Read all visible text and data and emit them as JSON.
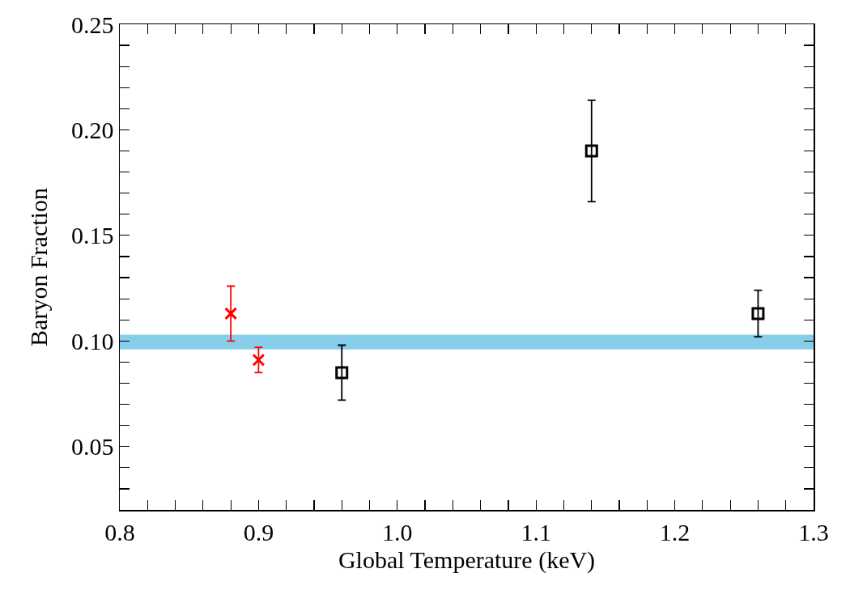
{
  "chart_data": {
    "type": "scatter",
    "xlabel": "Global Temperature (keV)",
    "ylabel": "Baryon Fraction",
    "xlim": [
      0.8,
      1.3
    ],
    "xticks": [
      {
        "value": 0.8,
        "label": "0.8"
      },
      {
        "value": 0.82,
        "label": null
      },
      {
        "value": 0.84,
        "label": null
      },
      {
        "value": 0.86,
        "label": null
      },
      {
        "value": 0.88,
        "label": null
      },
      {
        "value": 0.9,
        "label": "0.9"
      },
      {
        "value": 0.92,
        "label": null
      },
      {
        "value": 0.94,
        "label": null
      },
      {
        "value": 0.96,
        "label": null
      },
      {
        "value": 0.98,
        "label": null
      },
      {
        "value": 1.0,
        "label": "1.0"
      },
      {
        "value": 1.02,
        "label": null
      },
      {
        "value": 1.04,
        "label": null
      },
      {
        "value": 1.06,
        "label": null
      },
      {
        "value": 1.08,
        "label": null
      },
      {
        "value": 1.1,
        "label": "1.1"
      },
      {
        "value": 1.12,
        "label": null
      },
      {
        "value": 1.14,
        "label": null
      },
      {
        "value": 1.16,
        "label": null
      },
      {
        "value": 1.18,
        "label": null
      },
      {
        "value": 1.2,
        "label": "1.2"
      },
      {
        "value": 1.22,
        "label": null
      },
      {
        "value": 1.24,
        "label": null
      },
      {
        "value": 1.26,
        "label": null
      },
      {
        "value": 1.28,
        "label": null
      },
      {
        "value": 1.3,
        "label": "1.3"
      }
    ],
    "ylim": [
      0.02,
      0.25
    ],
    "yticks": [
      {
        "value": 0.03,
        "label": null
      },
      {
        "value": 0.04,
        "label": null
      },
      {
        "value": 0.05,
        "label": "0.05"
      },
      {
        "value": 0.06,
        "label": null
      },
      {
        "value": 0.07,
        "label": null
      },
      {
        "value": 0.08,
        "label": null
      },
      {
        "value": 0.09,
        "label": null
      },
      {
        "value": 0.1,
        "label": "0.10"
      },
      {
        "value": 0.11,
        "label": null
      },
      {
        "value": 0.12,
        "label": null
      },
      {
        "value": 0.13,
        "label": null
      },
      {
        "value": 0.14,
        "label": null
      },
      {
        "value": 0.15,
        "label": "0.15"
      },
      {
        "value": 0.16,
        "label": null
      },
      {
        "value": 0.17,
        "label": null
      },
      {
        "value": 0.18,
        "label": null
      },
      {
        "value": 0.19,
        "label": null
      },
      {
        "value": 0.2,
        "label": "0.20"
      },
      {
        "value": 0.21,
        "label": null
      },
      {
        "value": 0.22,
        "label": null
      },
      {
        "value": 0.23,
        "label": null
      },
      {
        "value": 0.24,
        "label": null
      },
      {
        "value": 0.25,
        "label": "0.25"
      }
    ],
    "grid": false,
    "bands": [
      {
        "axis": "y",
        "from": 0.096,
        "to": 0.103,
        "color": "#87ceeb"
      }
    ],
    "series": [
      {
        "color": "#ff0000",
        "marker": "cross",
        "x": [
          0.88,
          0.9
        ],
        "values": [
          0.113,
          0.091
        ],
        "errors": [
          [
            0.1,
            0.126
          ],
          [
            0.085,
            0.097
          ]
        ]
      },
      {
        "color": "#000000",
        "marker": "square",
        "x": [
          0.96,
          1.14,
          1.26
        ],
        "values": [
          0.085,
          0.19,
          0.113
        ],
        "errors": [
          [
            0.072,
            0.098
          ],
          [
            0.166,
            0.214
          ],
          [
            0.102,
            0.124
          ]
        ]
      }
    ]
  }
}
